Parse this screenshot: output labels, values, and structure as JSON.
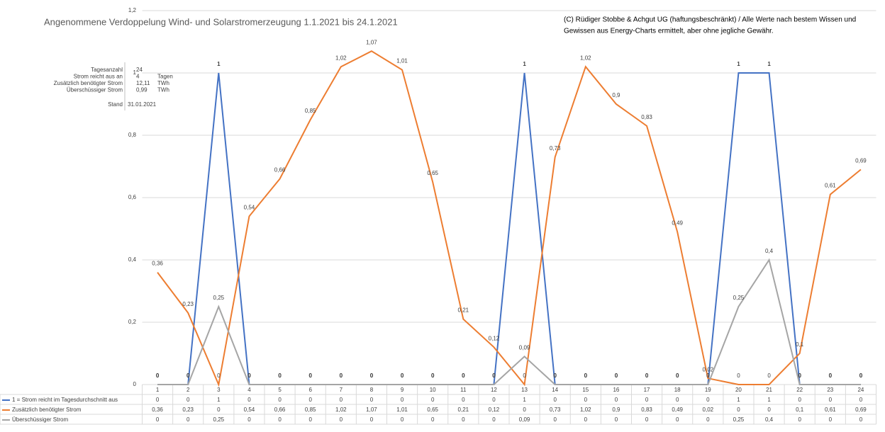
{
  "chart_data": {
    "type": "line",
    "title": "Angenommene Verdoppelung Wind- und Solarstromerzeugung 1.1.2021 bis 24.1.2021",
    "annotation": [
      "(C) Rüdiger Stobbe & Achgut UG (haftungsbeschränkt) / Alle Werte nach bestem Wissen und",
      "Gewissen aus Energy-Charts ermittelt, aber ohne jegliche Gewähr."
    ],
    "categories": [
      "1",
      "2",
      "3",
      "4",
      "5",
      "6",
      "7",
      "8",
      "9",
      "10",
      "11",
      "12",
      "13",
      "14",
      "15",
      "16",
      "17",
      "18",
      "19",
      "20",
      "21",
      "22",
      "23",
      "24"
    ],
    "ylim": [
      0,
      1.2
    ],
    "yticks": [
      0,
      {
        "value": 0.2,
        "label": "0,2"
      },
      {
        "value": 0.4,
        "label": "0,4"
      },
      {
        "value": 0.6,
        "label": "0,6"
      },
      {
        "value": 0.8,
        "label": "0,8"
      },
      {
        "value": 1,
        "label": "1"
      },
      {
        "value": 1.2,
        "label": "1,2"
      }
    ],
    "grid": true,
    "series": [
      {
        "name": "1 = Strom reicht im Tagesdurchschnitt aus",
        "color": "#4472c4",
        "values": [
          0,
          0,
          1,
          0,
          0,
          0,
          0,
          0,
          0,
          0,
          0,
          0,
          1,
          0,
          0,
          0,
          0,
          0,
          0,
          1,
          1,
          0,
          0,
          0
        ]
      },
      {
        "name": "Zusätzlich benötigter Strom",
        "color": "#ed7d31",
        "values": [
          0.36,
          0.23,
          0,
          0.54,
          0.66,
          0.85,
          1.02,
          1.07,
          1.01,
          0.65,
          0.21,
          0.12,
          0,
          0.73,
          1.02,
          0.9,
          0.83,
          0.49,
          0.02,
          0,
          0,
          0.1,
          0.61,
          0.69
        ],
        "value_labels": [
          "0,36",
          "0,23",
          "0",
          "0,54",
          "0,66",
          "0,85",
          "1,02",
          "1,07",
          "1,01",
          "0,65",
          "0,21",
          "0,12",
          "0",
          "0,73",
          "1,02",
          "0,9",
          "0,83",
          "0,49",
          "0,02",
          "0",
          "0",
          "0,1",
          "0,61",
          "0,69"
        ]
      },
      {
        "name": "Überschüssiger Strom",
        "color": "#a5a5a5",
        "values": [
          0,
          0,
          0.25,
          0,
          0,
          0,
          0,
          0,
          0,
          0,
          0,
          0,
          0.09,
          0,
          0,
          0,
          0,
          0,
          0,
          0.25,
          0.4,
          0,
          0,
          0
        ],
        "value_labels": [
          "0",
          "0",
          "0,25",
          "0",
          "0",
          "0",
          "0",
          "0",
          "0",
          "0",
          "0",
          "0",
          "0,09",
          "0",
          "0",
          "0",
          "0",
          "0",
          "0",
          "0,25",
          "0,4",
          "0",
          "0",
          "0"
        ]
      }
    ],
    "info": {
      "rows": [
        {
          "label": "Tagesanzahl",
          "value": "24"
        },
        {
          "label": "Strom reicht aus an",
          "value": "4",
          "unit": "Tagen"
        },
        {
          "label": "Zusätzlich benötigter Strom",
          "value": "12,11",
          "unit": "TWh"
        },
        {
          "label": "Überschüssiger Strom",
          "value": "0,99",
          "unit": "TWh"
        }
      ],
      "stand_label": "Stand",
      "stand": "31.01.2021"
    }
  }
}
